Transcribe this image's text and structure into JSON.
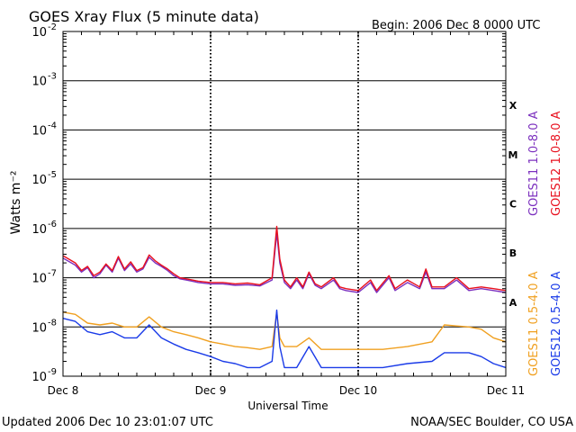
{
  "header": {
    "title": "GOES Xray Flux (5 minute data)",
    "begin": "Begin:  2006 Dec 8 0000 UTC"
  },
  "footer": {
    "updated": "Updated 2006 Dec 10 23:01:07 UTC",
    "source": "NOAA/SEC Boulder, CO USA"
  },
  "chart_data": {
    "type": "line",
    "title": "GOES Xray Flux (5 minute data)",
    "xlabel": "Universal Time",
    "ylabel": "Watts m⁻²",
    "yscale": "log",
    "ylim": [
      1e-09,
      0.01
    ],
    "xlim": [
      "2006-12-08 00:00",
      "2006-12-11 00:00"
    ],
    "x_ticks": [
      "Dec 8",
      "Dec 9",
      "Dec 10",
      "Dec 11"
    ],
    "y_ticks": [
      {
        "base": "10",
        "exp": "-2"
      },
      {
        "base": "10",
        "exp": "-3"
      },
      {
        "base": "10",
        "exp": "-4"
      },
      {
        "base": "10",
        "exp": "-5"
      },
      {
        "base": "10",
        "exp": "-6"
      },
      {
        "base": "10",
        "exp": "-7"
      },
      {
        "base": "10",
        "exp": "-8"
      },
      {
        "base": "10",
        "exp": "-9"
      }
    ],
    "flare_classes": [
      "X",
      "M",
      "C",
      "B",
      "A"
    ],
    "grid": true,
    "legend_position": "right",
    "series": [
      {
        "name": "GOES11 1.0-8.0 A",
        "color": "#7b2fbe",
        "points": [
          [
            "2006-12-08 00:00",
            2.5e-07
          ],
          [
            "2006-12-08 02:00",
            1.8e-07
          ],
          [
            "2006-12-08 03:00",
            1.3e-07
          ],
          [
            "2006-12-08 04:00",
            1.6e-07
          ],
          [
            "2006-12-08 05:00",
            1e-07
          ],
          [
            "2006-12-08 06:00",
            1.2e-07
          ],
          [
            "2006-12-08 07:00",
            1.8e-07
          ],
          [
            "2006-12-08 08:00",
            1.3e-07
          ],
          [
            "2006-12-08 09:00",
            2.5e-07
          ],
          [
            "2006-12-08 10:00",
            1.4e-07
          ],
          [
            "2006-12-08 11:00",
            1.9e-07
          ],
          [
            "2006-12-08 12:00",
            1.3e-07
          ],
          [
            "2006-12-08 13:00",
            1.5e-07
          ],
          [
            "2006-12-08 14:00",
            2.6e-07
          ],
          [
            "2006-12-08 15:00",
            2e-07
          ],
          [
            "2006-12-08 16:00",
            1.7e-07
          ],
          [
            "2006-12-08 17:00",
            1.4e-07
          ],
          [
            "2006-12-08 18:00",
            1.1e-07
          ],
          [
            "2006-12-08 19:00",
            9.5e-08
          ],
          [
            "2006-12-08 20:00",
            9e-08
          ],
          [
            "2006-12-08 21:00",
            8.5e-08
          ],
          [
            "2006-12-08 22:00",
            8e-08
          ],
          [
            "2006-12-09 00:00",
            7.5e-08
          ],
          [
            "2006-12-09 02:00",
            7.5e-08
          ],
          [
            "2006-12-09 04:00",
            7e-08
          ],
          [
            "2006-12-09 06:00",
            7.2e-08
          ],
          [
            "2006-12-09 08:00",
            6.8e-08
          ],
          [
            "2006-12-09 10:00",
            9e-08
          ],
          [
            "2006-12-09 10:45",
            8e-07
          ],
          [
            "2006-12-09 11:15",
            2e-07
          ],
          [
            "2006-12-09 12:00",
            8e-08
          ],
          [
            "2006-12-09 13:00",
            6e-08
          ],
          [
            "2006-12-09 14:00",
            9e-08
          ],
          [
            "2006-12-09 15:00",
            6e-08
          ],
          [
            "2006-12-09 16:00",
            1.2e-07
          ],
          [
            "2006-12-09 17:00",
            7e-08
          ],
          [
            "2006-12-09 18:00",
            6e-08
          ],
          [
            "2006-12-09 20:00",
            9e-08
          ],
          [
            "2006-12-09 21:00",
            6e-08
          ],
          [
            "2006-12-09 22:00",
            5.5e-08
          ],
          [
            "2006-12-10 00:00",
            5e-08
          ],
          [
            "2006-12-10 02:00",
            8e-08
          ],
          [
            "2006-12-10 03:00",
            5e-08
          ],
          [
            "2006-12-10 05:00",
            1e-07
          ],
          [
            "2006-12-10 06:00",
            5.5e-08
          ],
          [
            "2006-12-10 08:00",
            8e-08
          ],
          [
            "2006-12-10 10:00",
            6e-08
          ],
          [
            "2006-12-10 11:00",
            1.3e-07
          ],
          [
            "2006-12-10 12:00",
            6e-08
          ],
          [
            "2006-12-10 14:00",
            6e-08
          ],
          [
            "2006-12-10 16:00",
            9e-08
          ],
          [
            "2006-12-10 18:00",
            5.5e-08
          ],
          [
            "2006-12-10 20:00",
            6e-08
          ],
          [
            "2006-12-10 22:00",
            5.5e-08
          ],
          [
            "2006-12-11 00:00",
            5e-08
          ]
        ]
      },
      {
        "name": "GOES12 1.0-8.0 A",
        "color": "#e8101e",
        "points": [
          [
            "2006-12-08 00:00",
            2.8e-07
          ],
          [
            "2006-12-08 02:00",
            2e-07
          ],
          [
            "2006-12-08 03:00",
            1.4e-07
          ],
          [
            "2006-12-08 04:00",
            1.7e-07
          ],
          [
            "2006-12-08 05:00",
            1.1e-07
          ],
          [
            "2006-12-08 06:00",
            1.3e-07
          ],
          [
            "2006-12-08 07:00",
            1.9e-07
          ],
          [
            "2006-12-08 08:00",
            1.4e-07
          ],
          [
            "2006-12-08 09:00",
            2.7e-07
          ],
          [
            "2006-12-08 10:00",
            1.5e-07
          ],
          [
            "2006-12-08 11:00",
            2.1e-07
          ],
          [
            "2006-12-08 12:00",
            1.4e-07
          ],
          [
            "2006-12-08 13:00",
            1.6e-07
          ],
          [
            "2006-12-08 14:00",
            2.9e-07
          ],
          [
            "2006-12-08 15:00",
            2.2e-07
          ],
          [
            "2006-12-08 16:00",
            1.8e-07
          ],
          [
            "2006-12-08 17:00",
            1.5e-07
          ],
          [
            "2006-12-08 18:00",
            1.2e-07
          ],
          [
            "2006-12-08 19:00",
            1e-07
          ],
          [
            "2006-12-08 20:00",
            9.5e-08
          ],
          [
            "2006-12-08 21:00",
            9e-08
          ],
          [
            "2006-12-08 22:00",
            8.5e-08
          ],
          [
            "2006-12-09 00:00",
            8e-08
          ],
          [
            "2006-12-09 02:00",
            8e-08
          ],
          [
            "2006-12-09 04:00",
            7.5e-08
          ],
          [
            "2006-12-09 06:00",
            7.8e-08
          ],
          [
            "2006-12-09 08:00",
            7.2e-08
          ],
          [
            "2006-12-09 10:00",
            1e-07
          ],
          [
            "2006-12-09 10:45",
            1.1e-06
          ],
          [
            "2006-12-09 11:15",
            2.4e-07
          ],
          [
            "2006-12-09 12:00",
            9e-08
          ],
          [
            "2006-12-09 13:00",
            6.5e-08
          ],
          [
            "2006-12-09 14:00",
            1e-07
          ],
          [
            "2006-12-09 15:00",
            6.5e-08
          ],
          [
            "2006-12-09 16:00",
            1.3e-07
          ],
          [
            "2006-12-09 17:00",
            7.5e-08
          ],
          [
            "2006-12-09 18:00",
            6.5e-08
          ],
          [
            "2006-12-09 20:00",
            1e-07
          ],
          [
            "2006-12-09 21:00",
            6.5e-08
          ],
          [
            "2006-12-09 22:00",
            6e-08
          ],
          [
            "2006-12-10 00:00",
            5.5e-08
          ],
          [
            "2006-12-10 02:00",
            9e-08
          ],
          [
            "2006-12-10 03:00",
            5.5e-08
          ],
          [
            "2006-12-10 05:00",
            1.1e-07
          ],
          [
            "2006-12-10 06:00",
            6e-08
          ],
          [
            "2006-12-10 08:00",
            9e-08
          ],
          [
            "2006-12-10 10:00",
            6.5e-08
          ],
          [
            "2006-12-10 11:00",
            1.5e-07
          ],
          [
            "2006-12-10 12:00",
            6.5e-08
          ],
          [
            "2006-12-10 14:00",
            6.5e-08
          ],
          [
            "2006-12-10 16:00",
            1e-07
          ],
          [
            "2006-12-10 18:00",
            6e-08
          ],
          [
            "2006-12-10 20:00",
            6.5e-08
          ],
          [
            "2006-12-10 22:00",
            6e-08
          ],
          [
            "2006-12-11 00:00",
            5.5e-08
          ]
        ]
      },
      {
        "name": "GOES11 0.5-4.0 A",
        "color": "#f0a020",
        "points": [
          [
            "2006-12-08 00:00",
            2e-08
          ],
          [
            "2006-12-08 02:00",
            1.8e-08
          ],
          [
            "2006-12-08 04:00",
            1.2e-08
          ],
          [
            "2006-12-08 06:00",
            1.1e-08
          ],
          [
            "2006-12-08 08:00",
            1.2e-08
          ],
          [
            "2006-12-08 10:00",
            1e-08
          ],
          [
            "2006-12-08 12:00",
            1e-08
          ],
          [
            "2006-12-08 14:00",
            1.6e-08
          ],
          [
            "2006-12-08 16:00",
            1e-08
          ],
          [
            "2006-12-08 18:00",
            8e-09
          ],
          [
            "2006-12-08 20:00",
            7e-09
          ],
          [
            "2006-12-08 22:00",
            6e-09
          ],
          [
            "2006-12-09 00:00",
            5e-09
          ],
          [
            "2006-12-09 02:00",
            4.5e-09
          ],
          [
            "2006-12-09 04:00",
            4e-09
          ],
          [
            "2006-12-09 06:00",
            3.8e-09
          ],
          [
            "2006-12-09 08:00",
            3.5e-09
          ],
          [
            "2006-12-09 10:00",
            4e-09
          ],
          [
            "2006-12-09 10:45",
            2e-08
          ],
          [
            "2006-12-09 11:15",
            6e-09
          ],
          [
            "2006-12-09 12:00",
            4e-09
          ],
          [
            "2006-12-09 14:00",
            4e-09
          ],
          [
            "2006-12-09 16:00",
            6e-09
          ],
          [
            "2006-12-09 18:00",
            3.5e-09
          ],
          [
            "2006-12-09 20:00",
            3.5e-09
          ],
          [
            "2006-12-09 22:00",
            3.5e-09
          ],
          [
            "2006-12-10 00:00",
            3.5e-09
          ],
          [
            "2006-12-10 04:00",
            3.5e-09
          ],
          [
            "2006-12-10 08:00",
            4e-09
          ],
          [
            "2006-12-10 12:00",
            5e-09
          ],
          [
            "2006-12-10 14:00",
            1.1e-08
          ],
          [
            "2006-12-10 18:00",
            1e-08
          ],
          [
            "2006-12-10 20:00",
            9e-09
          ],
          [
            "2006-12-10 22:00",
            6e-09
          ],
          [
            "2006-12-11 00:00",
            5e-09
          ]
        ]
      },
      {
        "name": "GOES12 0.5-4.0 A",
        "color": "#1a3be8",
        "points": [
          [
            "2006-12-08 00:00",
            1.5e-08
          ],
          [
            "2006-12-08 02:00",
            1.3e-08
          ],
          [
            "2006-12-08 04:00",
            8e-09
          ],
          [
            "2006-12-08 06:00",
            7e-09
          ],
          [
            "2006-12-08 08:00",
            8e-09
          ],
          [
            "2006-12-08 10:00",
            6e-09
          ],
          [
            "2006-12-08 12:00",
            6e-09
          ],
          [
            "2006-12-08 14:00",
            1.1e-08
          ],
          [
            "2006-12-08 16:00",
            6e-09
          ],
          [
            "2006-12-08 18:00",
            4.5e-09
          ],
          [
            "2006-12-08 20:00",
            3.5e-09
          ],
          [
            "2006-12-08 22:00",
            3e-09
          ],
          [
            "2006-12-09 00:00",
            2.5e-09
          ],
          [
            "2006-12-09 02:00",
            2e-09
          ],
          [
            "2006-12-09 04:00",
            1.8e-09
          ],
          [
            "2006-12-09 06:00",
            1.5e-09
          ],
          [
            "2006-12-09 08:00",
            1.5e-09
          ],
          [
            "2006-12-09 10:00",
            2e-09
          ],
          [
            "2006-12-09 10:45",
            2.2e-08
          ],
          [
            "2006-12-09 11:15",
            4e-09
          ],
          [
            "2006-12-09 12:00",
            1.5e-09
          ],
          [
            "2006-12-09 14:00",
            1.5e-09
          ],
          [
            "2006-12-09 16:00",
            4e-09
          ],
          [
            "2006-12-09 18:00",
            1.5e-09
          ],
          [
            "2006-12-09 20:00",
            1.5e-09
          ],
          [
            "2006-12-09 22:00",
            1.5e-09
          ],
          [
            "2006-12-10 00:00",
            1.5e-09
          ],
          [
            "2006-12-10 04:00",
            1.5e-09
          ],
          [
            "2006-12-10 08:00",
            1.8e-09
          ],
          [
            "2006-12-10 12:00",
            2e-09
          ],
          [
            "2006-12-10 14:00",
            3e-09
          ],
          [
            "2006-12-10 18:00",
            3e-09
          ],
          [
            "2006-12-10 20:00",
            2.5e-09
          ],
          [
            "2006-12-10 22:00",
            1.8e-09
          ],
          [
            "2006-12-11 00:00",
            1.5e-09
          ]
        ]
      }
    ]
  }
}
